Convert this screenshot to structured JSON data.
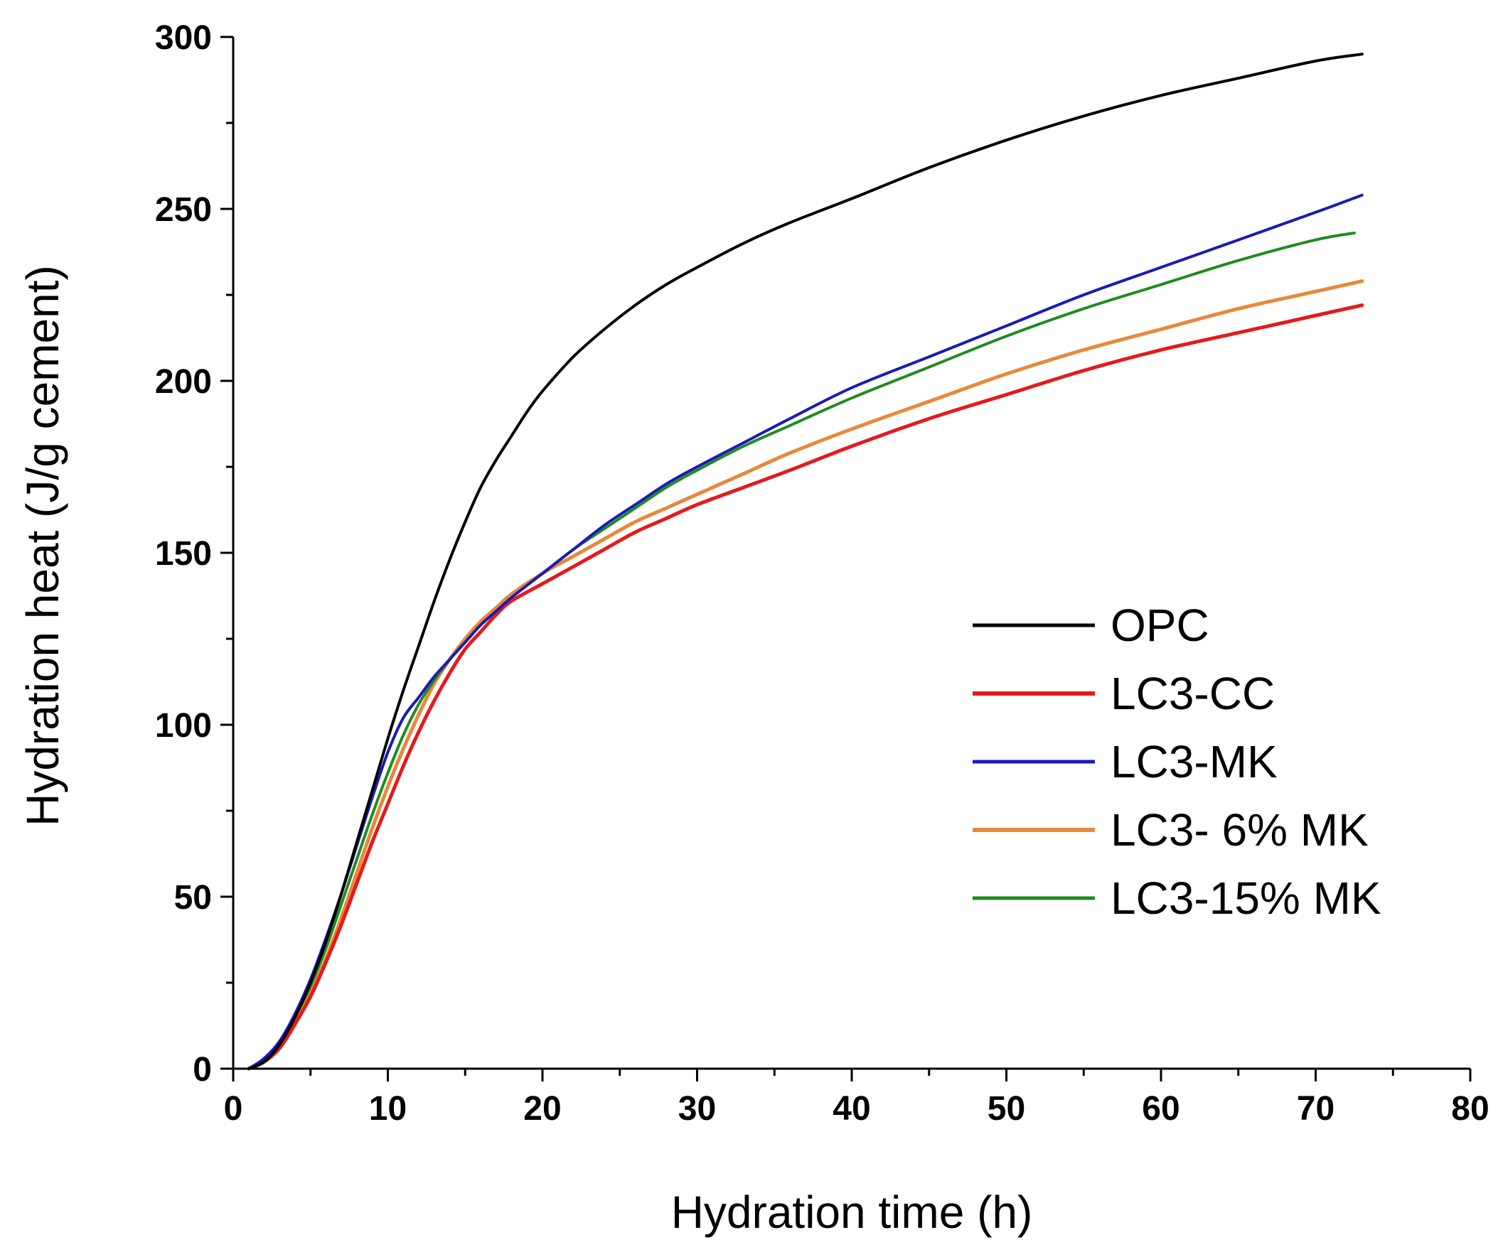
{
  "chart_data": {
    "type": "line",
    "title": "",
    "xlabel": "Hydration time (h)",
    "ylabel": "Hydration heat (J/g cement)",
    "xlim": [
      0,
      80
    ],
    "ylim": [
      0,
      300
    ],
    "x_ticks": [
      0,
      10,
      20,
      30,
      40,
      50,
      60,
      70,
      80
    ],
    "y_ticks": [
      0,
      50,
      100,
      150,
      200,
      250,
      300
    ],
    "grid": false,
    "legend_position": "center-right",
    "series": [
      {
        "name": "OPC",
        "color": "#000000",
        "x": [
          1,
          2,
          3,
          4,
          5,
          6,
          7,
          8,
          9,
          10,
          11,
          12,
          13,
          14,
          15,
          16,
          17,
          18,
          19,
          20,
          22,
          24,
          26,
          28,
          30,
          33,
          36,
          40,
          45,
          50,
          55,
          60,
          65,
          70,
          73
        ],
        "y": [
          0,
          2,
          7,
          15,
          25,
          37,
          51,
          66,
          81,
          96,
          110,
          123,
          136,
          148,
          159,
          169,
          177,
          184,
          191,
          197,
          207,
          215,
          222,
          228,
          233,
          240,
          246,
          253,
          262,
          270,
          277,
          283,
          288,
          293,
          295
        ]
      },
      {
        "name": "LC3-CC",
        "color": "#e41a1c",
        "x": [
          1,
          2,
          3,
          4,
          5,
          6,
          7,
          8,
          9,
          10,
          11,
          12,
          13,
          14,
          15,
          16,
          17,
          18,
          20,
          22,
          24,
          26,
          28,
          30,
          33,
          36,
          40,
          45,
          50,
          55,
          60,
          65,
          70,
          73
        ],
        "y": [
          0,
          2,
          6,
          13,
          21,
          31,
          42,
          54,
          66,
          77,
          88,
          98,
          107,
          115,
          122,
          127,
          132,
          136,
          141,
          146,
          151,
          156,
          160,
          164,
          169,
          174,
          181,
          189,
          196,
          203,
          209,
          214,
          219,
          222
        ]
      },
      {
        "name": "LC3-MK",
        "color": "#1a1ab8",
        "x": [
          1,
          2,
          3,
          4,
          5,
          6,
          7,
          8,
          9,
          10,
          11,
          12,
          13,
          14,
          15,
          16,
          17,
          18,
          20,
          22,
          24,
          26,
          28,
          30,
          33,
          36,
          40,
          45,
          50,
          55,
          60,
          65,
          70,
          73
        ],
        "y": [
          0,
          3,
          8,
          16,
          26,
          38,
          51,
          65,
          79,
          92,
          102,
          108,
          114,
          119,
          124,
          129,
          133,
          137,
          144,
          151,
          158,
          164,
          170,
          175,
          182,
          189,
          198,
          207,
          216,
          225,
          233,
          241,
          249,
          254
        ]
      },
      {
        "name": "LC3- 6% MK",
        "color": "#e8883a",
        "x": [
          1,
          2,
          3,
          4,
          5,
          6,
          7,
          8,
          9,
          10,
          11,
          12,
          13,
          14,
          15,
          16,
          17,
          18,
          20,
          22,
          24,
          26,
          28,
          30,
          33,
          36,
          40,
          45,
          50,
          55,
          60,
          65,
          70,
          73
        ],
        "y": [
          0,
          2,
          6,
          13,
          22,
          32,
          44,
          57,
          70,
          82,
          93,
          103,
          112,
          119,
          125,
          130,
          134,
          138,
          144,
          149,
          154,
          159,
          163,
          167,
          173,
          179,
          186,
          194,
          202,
          209,
          215,
          221,
          226,
          229
        ]
      },
      {
        "name": "LC3-15% MK",
        "color": "#1e8c1e",
        "x": [
          1,
          2,
          3,
          4,
          5,
          6,
          7,
          8,
          9,
          10,
          11,
          12,
          13,
          14,
          15,
          16,
          17,
          18,
          20,
          22,
          24,
          26,
          28,
          30,
          33,
          36,
          40,
          45,
          50,
          55,
          60,
          65,
          70,
          72.5
        ],
        "y": [
          0,
          2,
          7,
          15,
          24,
          35,
          48,
          61,
          74,
          86,
          97,
          106,
          113,
          119,
          124,
          129,
          133,
          137,
          144,
          151,
          157,
          163,
          169,
          174,
          181,
          187,
          195,
          204,
          213,
          221,
          228,
          235,
          241,
          243
        ]
      }
    ]
  }
}
